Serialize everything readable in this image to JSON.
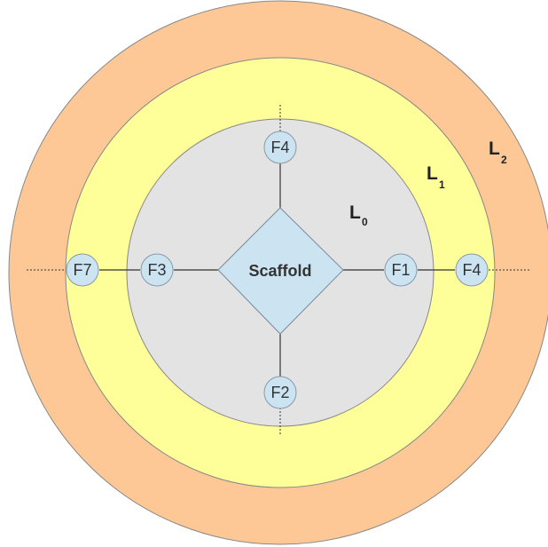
{
  "colors": {
    "outer_ring": "#FDC896",
    "middle_ring": "#FFFF99",
    "inner_ring": "#E3E3E3",
    "node_fill": "#CCE4F2",
    "scaffold_fill": "#CCE4F2",
    "stroke": "#666666"
  },
  "rings": [
    {
      "main": "L",
      "sub": "0"
    },
    {
      "main": "L",
      "sub": "1"
    },
    {
      "main": "L",
      "sub": "2"
    }
  ],
  "scaffold": {
    "label": "Scaffold"
  },
  "fragments": {
    "top": "F4",
    "right_inner": "F1",
    "right_outer": "F4",
    "bottom": "F2",
    "left_inner": "F3",
    "left_outer": "F7"
  }
}
